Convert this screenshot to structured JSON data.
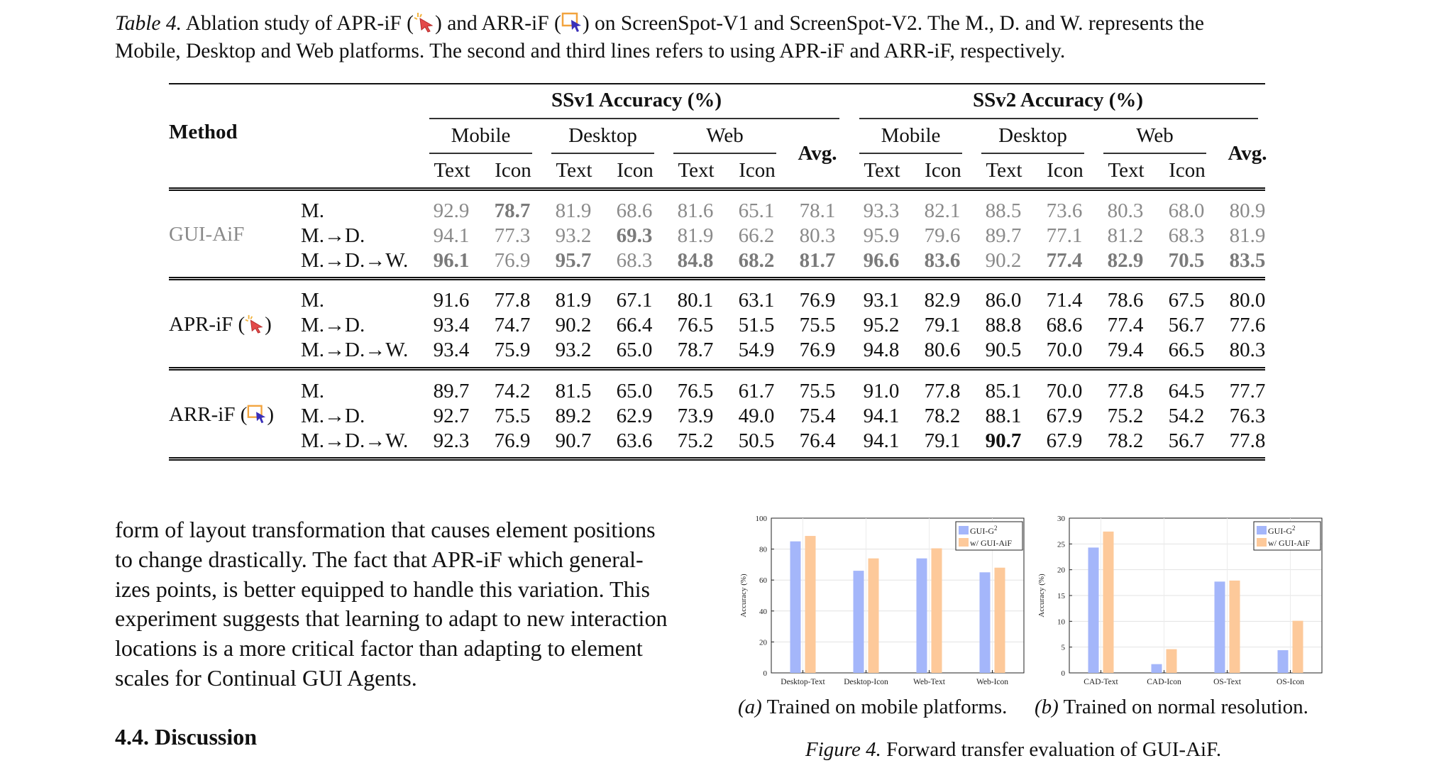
{
  "caption": {
    "label": "Table 4.",
    "text1": "Ablation study of APR-iF (",
    "text2": ") and ARR-iF (",
    "text3": ") on ScreenSpot-V1 and ScreenSpot-V2. The M., D. and W. represents the",
    "text4": "Mobile, Desktop and Web platforms. The second and third lines refers to using APR-iF and ARR-iF, respectively."
  },
  "table": {
    "method_header": "Method",
    "group_headers": [
      "SSv1 Accuracy (%)",
      "SSv2 Accuracy (%)"
    ],
    "platform_headers": [
      "Mobile",
      "Desktop",
      "Web"
    ],
    "sub_headers": [
      "Text",
      "Icon"
    ],
    "avg_header": "Avg.",
    "blocks": [
      {
        "method": "GUI-AiF",
        "rows": [
          {
            "setting": "M.",
            "values": [
              "92.9",
              "78.7",
              "81.9",
              "68.6",
              "81.6",
              "65.1",
              "78.1",
              "93.3",
              "82.1",
              "88.5",
              "73.6",
              "80.3",
              "68.0",
              "80.9"
            ]
          },
          {
            "setting": "M.→D.",
            "values": [
              "94.1",
              "77.3",
              "93.2",
              "69.3",
              "81.9",
              "66.2",
              "80.3",
              "95.9",
              "79.6",
              "89.7",
              "77.1",
              "81.2",
              "68.3",
              "81.9"
            ]
          },
          {
            "setting": "M.→D.→W.",
            "values": [
              "96.1",
              "76.9",
              "95.7",
              "68.3",
              "84.8",
              "68.2",
              "81.7",
              "96.6",
              "83.6",
              "90.2",
              "77.4",
              "82.9",
              "70.5",
              "83.5"
            ]
          }
        ]
      },
      {
        "method": "APR-iF (",
        "method_end": ")",
        "rows": [
          {
            "setting": "M.",
            "values": [
              "91.6",
              "77.8",
              "81.9",
              "67.1",
              "80.1",
              "63.1",
              "76.9",
              "93.1",
              "82.9",
              "86.0",
              "71.4",
              "78.6",
              "67.5",
              "80.0"
            ]
          },
          {
            "setting": "M.→D.",
            "values": [
              "93.4",
              "74.7",
              "90.2",
              "66.4",
              "76.5",
              "51.5",
              "75.5",
              "95.2",
              "79.1",
              "88.8",
              "68.6",
              "77.4",
              "56.7",
              "77.6"
            ]
          },
          {
            "setting": "M.→D.→W.",
            "values": [
              "93.4",
              "75.9",
              "93.2",
              "65.0",
              "78.7",
              "54.9",
              "76.9",
              "94.8",
              "80.6",
              "90.5",
              "70.0",
              "79.4",
              "66.5",
              "80.3"
            ]
          }
        ]
      },
      {
        "method": "ARR-iF (",
        "method_end": ")",
        "rows": [
          {
            "setting": "M.",
            "values": [
              "89.7",
              "74.2",
              "81.5",
              "65.0",
              "76.5",
              "61.7",
              "75.5",
              "91.0",
              "77.8",
              "85.1",
              "70.0",
              "77.8",
              "64.5",
              "77.7"
            ]
          },
          {
            "setting": "M.→D.",
            "values": [
              "92.7",
              "75.5",
              "89.2",
              "62.9",
              "73.9",
              "49.0",
              "75.4",
              "94.1",
              "78.2",
              "88.1",
              "67.9",
              "75.2",
              "54.2",
              "76.3"
            ]
          },
          {
            "setting": "M.→D.→W.",
            "values": [
              "92.3",
              "76.9",
              "90.7",
              "63.6",
              "75.2",
              "50.5",
              "76.4",
              "94.1",
              "79.1",
              "90.7",
              "67.9",
              "78.2",
              "56.7",
              "77.8"
            ]
          }
        ]
      }
    ]
  },
  "body": {
    "paragraph": [
      "form of layout transformation that causes element positions",
      "to change drastically. The fact that APR-iF which general-",
      "izes points, is better equipped to handle this variation. This",
      "experiment suggests that learning to adapt to new interaction",
      "locations is a more critical factor than adapting to element",
      "scales for Continual GUI Agents."
    ],
    "section_title": "4.4. Discussion"
  },
  "figure": {
    "sub_a_label": "(a)",
    "sub_a_text": "Trained on mobile platforms.",
    "sub_b_label": "(b)",
    "sub_b_text": "Trained on normal resolution.",
    "caption_label": "Figure 4.",
    "caption_text": "Forward transfer evaluation of GUI-AiF."
  },
  "colors": {
    "series_blue": "#a4b6fa",
    "series_orange": "#fdc99a"
  },
  "chart_data": [
    {
      "type": "bar",
      "title": "",
      "ylabel": "Accuracy (%)",
      "xlabel": "",
      "categories": [
        "Desktop-Text",
        "Desktop-Icon",
        "Web-Text",
        "Web-Icon"
      ],
      "ylim": [
        0,
        100
      ],
      "yticks": [
        "0",
        "20",
        "40",
        "60",
        "80",
        "100"
      ],
      "series": [
        {
          "name": "GUI-G",
          "sup": "2",
          "values": [
            85,
            66,
            74,
            65
          ]
        },
        {
          "name": "w/ GUI-AiF",
          "values": [
            88.5,
            74,
            80.5,
            68
          ]
        }
      ],
      "legend": "top-right"
    },
    {
      "type": "bar",
      "title": "",
      "ylabel": "Accuracy (%)",
      "xlabel": "",
      "categories": [
        "CAD-Text",
        "CAD-Icon",
        "OS-Text",
        "OS-Icon"
      ],
      "ylim": [
        0,
        30
      ],
      "yticks": [
        "0",
        "5",
        "10",
        "15",
        "20",
        "25",
        "30"
      ],
      "series": [
        {
          "name": "GUI-G",
          "sup": "2",
          "values": [
            24.3,
            1.7,
            17.7,
            4.4
          ]
        },
        {
          "name": "w/ GUI-AiF",
          "values": [
            27.4,
            4.6,
            17.9,
            10.1
          ]
        }
      ],
      "legend": "top-right"
    }
  ]
}
